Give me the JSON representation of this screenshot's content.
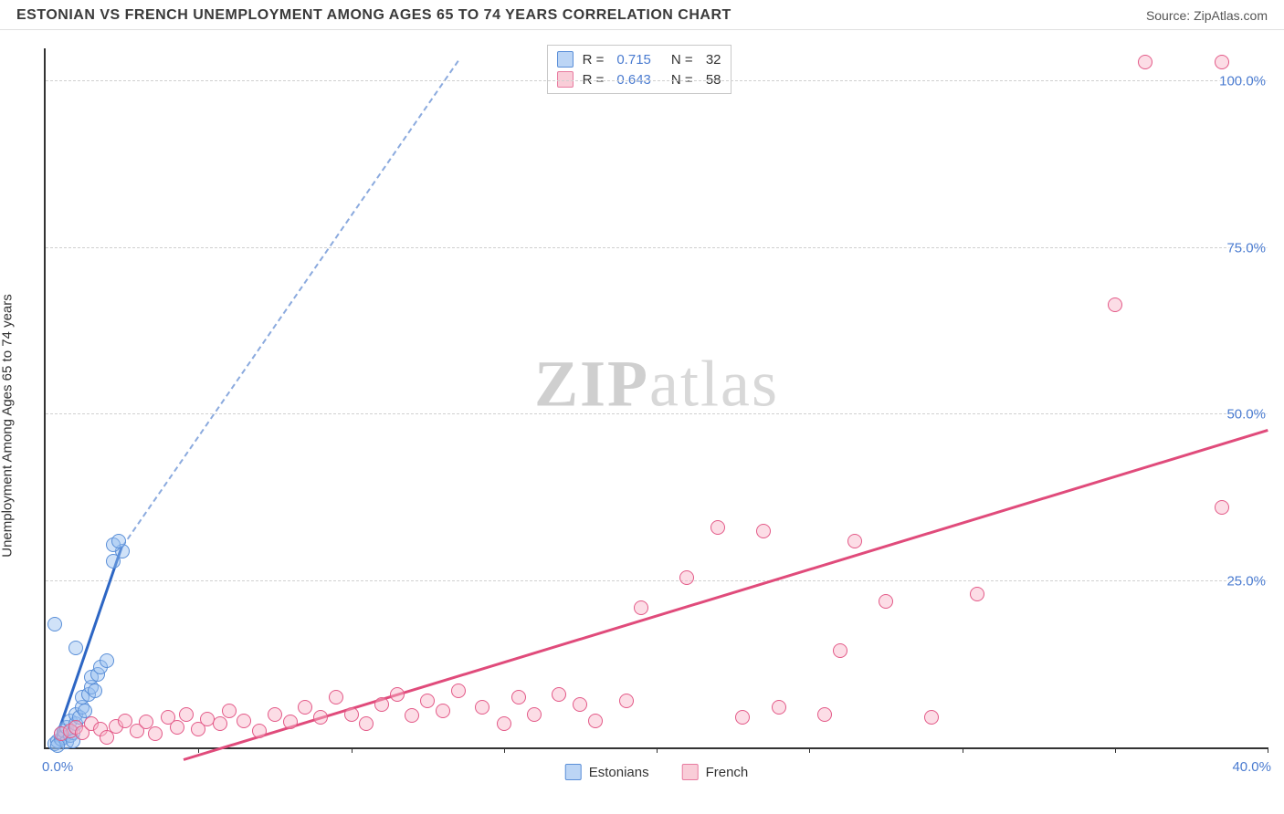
{
  "header": {
    "title": "ESTONIAN VS FRENCH UNEMPLOYMENT AMONG AGES 65 TO 74 YEARS CORRELATION CHART",
    "source": "Source: ZipAtlas.com"
  },
  "watermark": {
    "zip": "ZIP",
    "atlas": "atlas"
  },
  "chart": {
    "type": "scatter",
    "ylabel": "Unemployment Among Ages 65 to 74 years",
    "xlim_min_label": "0.0%",
    "xlim_max_label": "40.0%",
    "xlim": [
      0,
      40
    ],
    "ylim": [
      0,
      105
    ],
    "xticks": [
      5,
      10,
      15,
      20,
      25,
      30,
      35,
      40
    ],
    "yticks": [
      {
        "v": 25,
        "label": "25.0%"
      },
      {
        "v": 50,
        "label": "50.0%"
      },
      {
        "v": 75,
        "label": "75.0%"
      },
      {
        "v": 100,
        "label": "100.0%"
      }
    ],
    "background_color": "#ffffff",
    "grid_color": "#d0d0d0",
    "axis_color": "#333333",
    "tick_label_color": "#4a7bd0",
    "marker_radius": 8,
    "infobox": {
      "rows": [
        {
          "swatch_fill": "#bcd5f5",
          "swatch_border": "#5a8fd8",
          "r_label": "R  =",
          "r": "0.715",
          "n_label": "N  =",
          "n": "32"
        },
        {
          "swatch_fill": "#f9cdd8",
          "swatch_border": "#e87ba0",
          "r_label": "R  =",
          "r": "0.643",
          "n_label": "N  =",
          "n": "58"
        }
      ]
    },
    "legend": [
      {
        "swatch_fill": "#bcd5f5",
        "swatch_border": "#5a8fd8",
        "label": "Estonians"
      },
      {
        "swatch_fill": "#f9cdd8",
        "swatch_border": "#e87ba0",
        "label": "French"
      }
    ],
    "series": [
      {
        "name": "Estonians",
        "marker_fill": "rgba(150,190,240,0.45)",
        "marker_stroke": "#5a8fd8",
        "trend_color": "#2d66c4",
        "trend_solid": true,
        "trend": {
          "x1": 0.3,
          "y1": 0.5,
          "x2": 13.5,
          "y2": 103
        },
        "points": [
          [
            0.3,
            0.5
          ],
          [
            0.4,
            1.0
          ],
          [
            0.5,
            1.2
          ],
          [
            0.5,
            2.0
          ],
          [
            0.6,
            1.5
          ],
          [
            0.6,
            2.5
          ],
          [
            0.7,
            0.8
          ],
          [
            0.7,
            3.0
          ],
          [
            0.8,
            1.8
          ],
          [
            0.8,
            4.0
          ],
          [
            0.9,
            2.2
          ],
          [
            1.0,
            3.5
          ],
          [
            1.0,
            5.0
          ],
          [
            1.1,
            4.5
          ],
          [
            1.2,
            6.0
          ],
          [
            1.2,
            7.5
          ],
          [
            1.3,
            5.5
          ],
          [
            1.4,
            8.0
          ],
          [
            1.5,
            9.0
          ],
          [
            1.5,
            10.5
          ],
          [
            1.6,
            8.5
          ],
          [
            1.7,
            11.0
          ],
          [
            1.8,
            12.0
          ],
          [
            2.0,
            13.0
          ],
          [
            0.3,
            18.5
          ],
          [
            1.0,
            15.0
          ],
          [
            2.2,
            28.0
          ],
          [
            2.5,
            29.5
          ],
          [
            2.2,
            30.5
          ],
          [
            2.4,
            31.0
          ],
          [
            0.4,
            0.3
          ],
          [
            0.9,
            1.0
          ]
        ]
      },
      {
        "name": "French",
        "marker_fill": "rgba(248,180,200,0.45)",
        "marker_stroke": "#e35a88",
        "trend_color": "#e04b7b",
        "trend_solid": true,
        "trend": {
          "x1": 4.5,
          "y1": -2,
          "x2": 40,
          "y2": 47.5
        },
        "points": [
          [
            0.5,
            2.0
          ],
          [
            0.8,
            2.5
          ],
          [
            1.0,
            3.0
          ],
          [
            1.2,
            2.2
          ],
          [
            1.5,
            3.5
          ],
          [
            1.8,
            2.8
          ],
          [
            2.0,
            1.5
          ],
          [
            2.3,
            3.2
          ],
          [
            2.6,
            4.0
          ],
          [
            3.0,
            2.5
          ],
          [
            3.3,
            3.8
          ],
          [
            3.6,
            2.0
          ],
          [
            4.0,
            4.5
          ],
          [
            4.3,
            3.0
          ],
          [
            4.6,
            5.0
          ],
          [
            5.0,
            2.8
          ],
          [
            5.3,
            4.2
          ],
          [
            5.7,
            3.5
          ],
          [
            6.0,
            5.5
          ],
          [
            6.5,
            4.0
          ],
          [
            7.0,
            2.5
          ],
          [
            7.5,
            5.0
          ],
          [
            8.0,
            3.8
          ],
          [
            8.5,
            6.0
          ],
          [
            9.0,
            4.5
          ],
          [
            9.5,
            7.5
          ],
          [
            10.0,
            5.0
          ],
          [
            10.5,
            3.5
          ],
          [
            11.0,
            6.5
          ],
          [
            11.5,
            8.0
          ],
          [
            12.0,
            4.8
          ],
          [
            12.5,
            7.0
          ],
          [
            13.0,
            5.5
          ],
          [
            13.5,
            8.5
          ],
          [
            14.3,
            6.0
          ],
          [
            15.0,
            3.5
          ],
          [
            15.5,
            7.5
          ],
          [
            16.0,
            5.0
          ],
          [
            16.8,
            8.0
          ],
          [
            17.5,
            6.5
          ],
          [
            18.0,
            4.0
          ],
          [
            19.0,
            7.0
          ],
          [
            19.5,
            21.0
          ],
          [
            21.0,
            25.5
          ],
          [
            22.0,
            33.0
          ],
          [
            22.8,
            4.5
          ],
          [
            23.5,
            32.5
          ],
          [
            24.0,
            6.0
          ],
          [
            25.5,
            5.0
          ],
          [
            26.0,
            14.5
          ],
          [
            26.5,
            31.0
          ],
          [
            27.5,
            22.0
          ],
          [
            29.0,
            4.5
          ],
          [
            30.5,
            23.0
          ],
          [
            35.0,
            66.5
          ],
          [
            36.0,
            103.0
          ],
          [
            38.5,
            103.0
          ],
          [
            38.5,
            36.0
          ]
        ]
      }
    ]
  }
}
